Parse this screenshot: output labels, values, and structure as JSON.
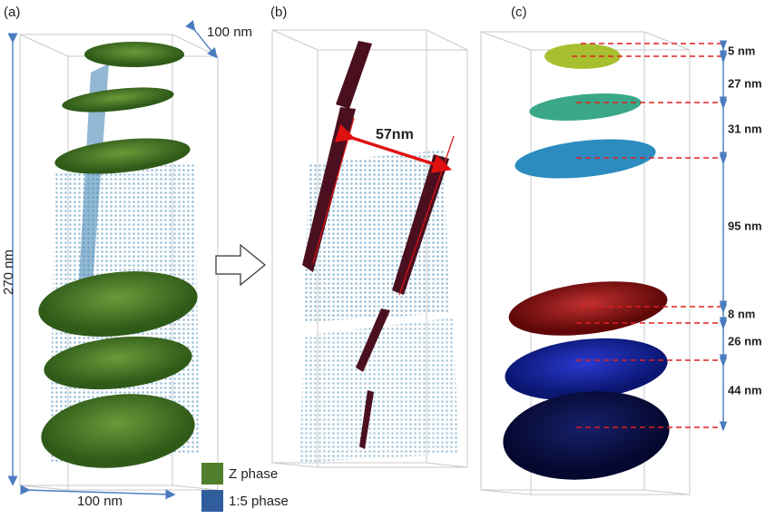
{
  "panel_a": {
    "label": "(a)",
    "width_top": "100 nm",
    "height": "270 nm",
    "width_bottom": "100 nm"
  },
  "panel_b": {
    "label": "(b)",
    "spacing": "57nm"
  },
  "panel_c": {
    "label": "(c)",
    "spacings": [
      "5 nm",
      "27 nm",
      "31 nm",
      "95 nm",
      "8 nm",
      "26 nm",
      "44 nm"
    ]
  },
  "legend": [
    {
      "label": "Z phase",
      "color": "#4f7f2c"
    },
    {
      "label": "1:5 phase",
      "color": "#2f5d9e"
    }
  ]
}
